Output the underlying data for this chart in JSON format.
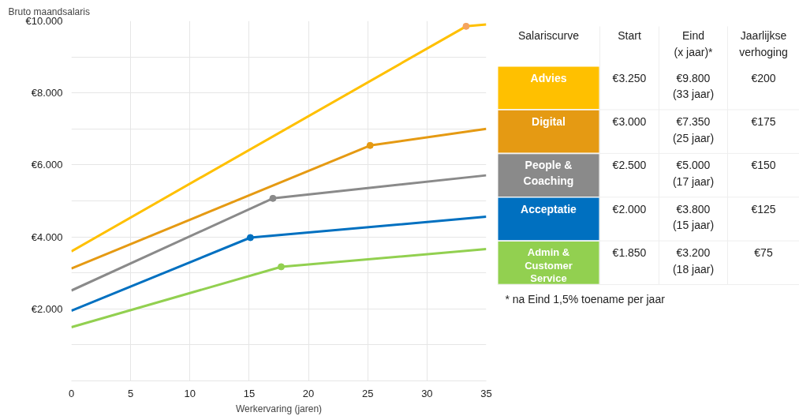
{
  "chart_data": {
    "type": "line",
    "xlabel": "Werkervaring (jaren)",
    "ylabel": "Bruto maandsalaris",
    "xlim": [
      0,
      35
    ],
    "xticks": [
      0,
      5,
      10,
      15,
      20,
      25,
      30,
      35
    ],
    "ylim": [
      0,
      10000
    ],
    "yticks": [
      {
        "value": 1000,
        "label": null
      },
      {
        "value": 2000,
        "label": "€2.000"
      },
      {
        "value": 3000,
        "label": null
      },
      {
        "value": 4000,
        "label": "€4.000"
      },
      {
        "value": 5000,
        "label": null
      },
      {
        "value": 6000,
        "label": "€6.000"
      },
      {
        "value": 7000,
        "label": null
      },
      {
        "value": 8000,
        "label": "€8.000"
      },
      {
        "value": 9000,
        "label": null
      },
      {
        "value": 10000,
        "label": "€10.000"
      }
    ],
    "grid": true,
    "legend": "right",
    "line_style": "solid",
    "series": [
      {
        "name": "Advies",
        "color": "#ffc000",
        "x": [
          0,
          33.3,
          35
        ],
        "values": [
          3600,
          9850,
          9900
        ]
      },
      {
        "name": "Digital",
        "color": "#e59a13",
        "x": [
          0,
          25.2,
          35
        ],
        "values": [
          3120,
          6540,
          7000
        ]
      },
      {
        "name": "People &\nCoaching",
        "color": "#8a8a8a",
        "x": [
          0,
          17.0,
          35
        ],
        "values": [
          2510,
          5070,
          5710
        ]
      },
      {
        "name": "Acceptatie",
        "color": "#0070c0",
        "x": [
          0,
          15.1,
          35
        ],
        "values": [
          1950,
          3980,
          4560
        ]
      },
      {
        "name": "Admin &\nCustomer\nService",
        "color": "#92d050",
        "x": [
          0,
          17.7,
          35
        ],
        "values": [
          1490,
          3170,
          3660
        ]
      },
      {
        "type": "scatter",
        "marker": "circle",
        "x": [
          33.3,
          25.2,
          17.0,
          15.1,
          17.7
        ],
        "values": [
          9850,
          6540,
          5070,
          3980,
          3170
        ],
        "colors": [
          "#f4a460",
          "#e59a13",
          "#8a8a8a",
          "#0070c0",
          "#92d050"
        ]
      }
    ],
    "annotations": [
      "Salariscurve",
      "Start",
      "Eind\n(x jaar)*",
      "Jaarlijkse\nverhoging",
      "€3.250",
      "€9.800\n(33 jaar)",
      "€200",
      "€3.000",
      "€7.350\n(25 jaar)",
      "€175",
      "€2.500",
      "€5.000\n(17 jaar)",
      "€150",
      "€2.000",
      "€3.800\n(15 jaar)",
      "€125",
      "€1.850",
      "€3.200\n(18 jaar)",
      "€75",
      "* na Eind 1,5% toename per jaar"
    ]
  }
}
